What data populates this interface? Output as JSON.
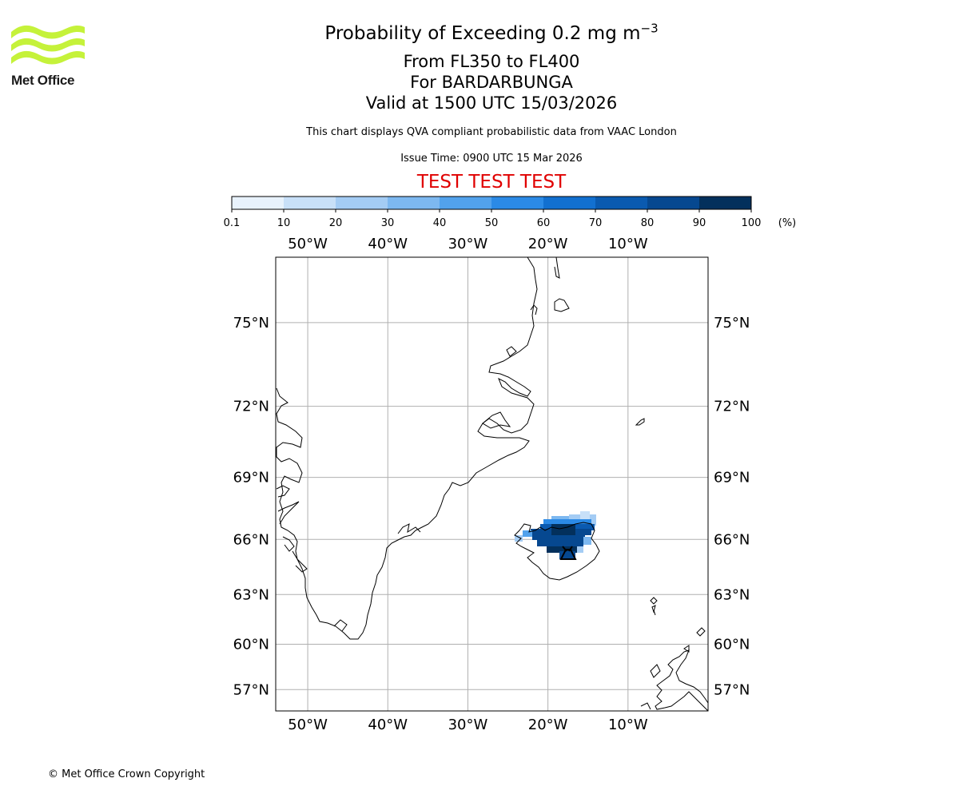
{
  "logo": {
    "text": "Met Office",
    "color": "#c5f23a",
    "text_color": "#1a1a1a"
  },
  "header": {
    "title_main": "Probability of Exceeding 0.2 mg m",
    "title_exponent": "−3",
    "flight_levels": "From FL350 to FL400",
    "volcano": "For BARDARBUNGA",
    "valid_time": "Valid at 1500 UTC 15/03/2026",
    "description": "This chart displays QVA compliant probabilistic data from VAAC London",
    "issue_time": "Issue Time: 0900 UTC 15 Mar 2026",
    "test_banner": "TEST TEST TEST",
    "test_banner_color": "#e00000"
  },
  "colorbar": {
    "unit_label": "(%)",
    "ticks": [
      "0.1",
      "10",
      "20",
      "30",
      "40",
      "50",
      "60",
      "70",
      "80",
      "90",
      "100"
    ],
    "colors": [
      "#e8f2fc",
      "#c8e0f8",
      "#a4ccf4",
      "#7db8f0",
      "#52a2ec",
      "#2b8ae6",
      "#1270d0",
      "#0a5ab0",
      "#064890",
      "#03305c"
    ]
  },
  "chart_data": {
    "type": "map",
    "projection": "geographic lat/lon grid",
    "x_ticks": [
      "50°W",
      "40°W",
      "30°W",
      "20°W",
      "10°W"
    ],
    "x_values": [
      -50,
      -40,
      -30,
      -20,
      -10
    ],
    "y_ticks": [
      "75°N",
      "72°N",
      "69°N",
      "66°N",
      "63°N",
      "60°N",
      "57°N"
    ],
    "y_values": [
      75,
      72,
      69,
      66,
      63,
      60,
      57
    ],
    "lon_range": [
      -54,
      0
    ],
    "lat_range": [
      55.5,
      77
    ],
    "grid": true,
    "ash_field": {
      "description": "Probability field over Iceland, highest over north-central Iceland",
      "lon_range": [
        -24,
        -14
      ],
      "lat_range": [
        65,
        67
      ],
      "max_probability_band": "90-100"
    },
    "volcano_marker": {
      "name": "BARDARBUNGA",
      "lon": -17.5,
      "lat": 64.6
    }
  },
  "footer": {
    "copyright": "© Met Office Crown Copyright"
  }
}
